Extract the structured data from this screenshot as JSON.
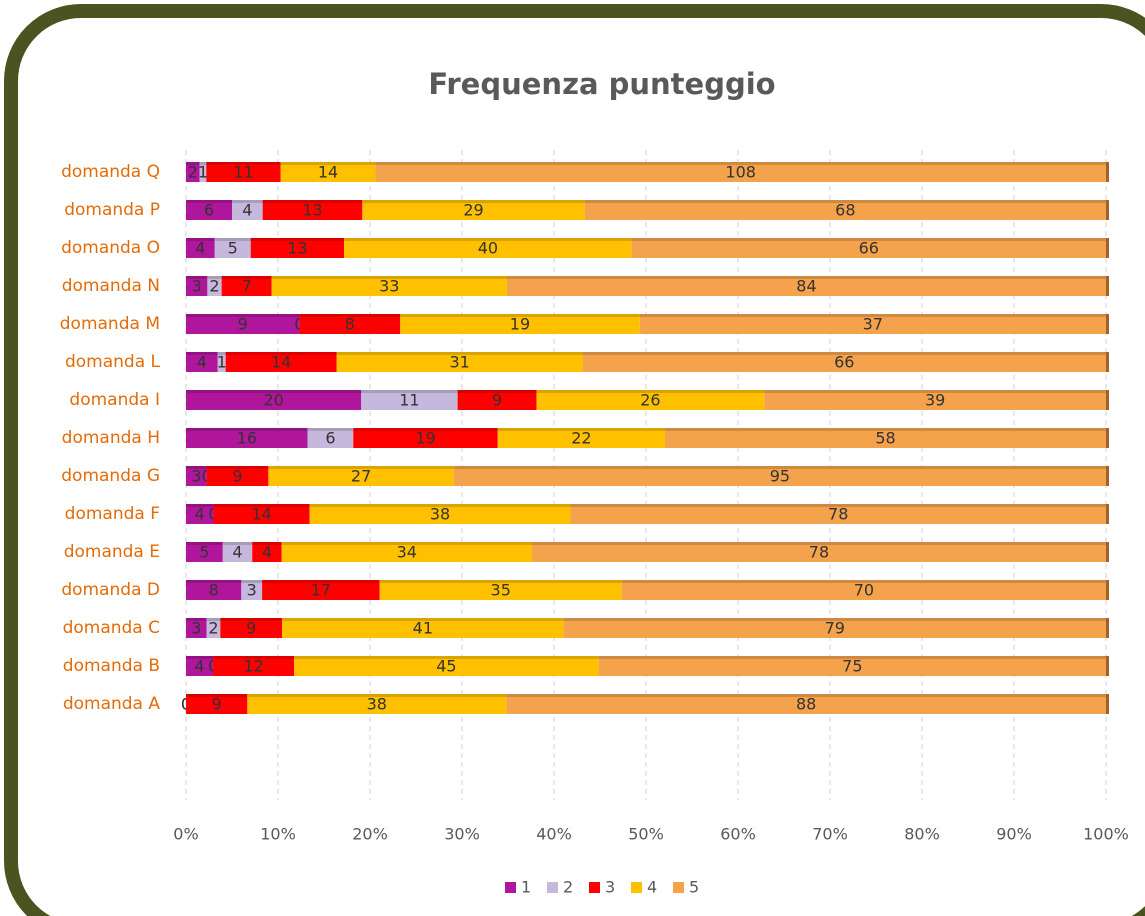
{
  "chart_data": {
    "type": "bar",
    "orientation": "horizontal",
    "stack": "percent",
    "title": "Frequenza punteggio",
    "categories": [
      "domanda A",
      "domanda B",
      "domanda C",
      "domanda D",
      "domanda E",
      "domanda F",
      "domanda G",
      "domanda H",
      "domanda I",
      "domanda L",
      "domanda M",
      "domanda N",
      "domanda O",
      "domanda P",
      "domanda Q"
    ],
    "series": [
      {
        "name": "1",
        "color": "#b0169c",
        "values": [
          0,
          4,
          3,
          8,
          5,
          4,
          3,
          16,
          20,
          4,
          9,
          3,
          4,
          6,
          2
        ]
      },
      {
        "name": "2",
        "color": "#c5b8dc",
        "values": [
          0,
          0,
          2,
          3,
          4,
          0,
          0,
          6,
          11,
          1,
          0,
          2,
          5,
          4,
          1
        ]
      },
      {
        "name": "3",
        "color": "#ff0000",
        "values": [
          9,
          12,
          9,
          17,
          4,
          14,
          9,
          19,
          9,
          14,
          8,
          7,
          13,
          13,
          11
        ]
      },
      {
        "name": "4",
        "color": "#ffc000",
        "values": [
          38,
          45,
          41,
          35,
          34,
          38,
          27,
          22,
          26,
          31,
          19,
          33,
          40,
          29,
          14
        ]
      },
      {
        "name": "5",
        "color": "#f4a24c",
        "values": [
          88,
          75,
          79,
          70,
          78,
          78,
          95,
          58,
          39,
          66,
          37,
          84,
          66,
          68,
          108
        ]
      }
    ],
    "xlim": [
      0,
      100
    ],
    "xticks": [
      {
        "value": 0,
        "label": "0%"
      },
      {
        "value": 10,
        "label": "10%"
      },
      {
        "value": 20,
        "label": "20%"
      },
      {
        "value": 30,
        "label": "30%"
      },
      {
        "value": 40,
        "label": "40%"
      },
      {
        "value": 50,
        "label": "50%"
      },
      {
        "value": 60,
        "label": "60%"
      },
      {
        "value": 70,
        "label": "70%"
      },
      {
        "value": 80,
        "label": "80%"
      },
      {
        "value": 90,
        "label": "90%"
      },
      {
        "value": 100,
        "label": "100%"
      }
    ],
    "grid": true,
    "legend": "bottom"
  }
}
